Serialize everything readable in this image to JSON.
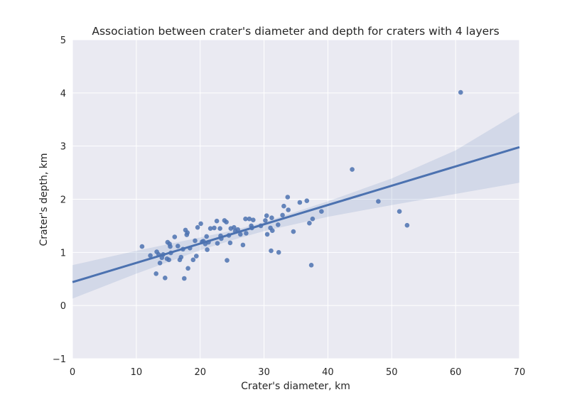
{
  "chart_data": {
    "type": "scatter",
    "title": "Association between crater's diameter and depth for craters with 4 layers",
    "xlabel": "Crater's diameter, km",
    "ylabel": "Crater's depth, km",
    "xlim": [
      0,
      70
    ],
    "ylim": [
      -1,
      5
    ],
    "xticks": [
      0,
      10,
      20,
      30,
      40,
      50,
      60,
      70
    ],
    "yticks": [
      -1,
      0,
      1,
      2,
      3,
      4,
      5
    ],
    "xtick_labels": [
      "0",
      "10",
      "20",
      "30",
      "40",
      "50",
      "60",
      "70"
    ],
    "ytick_labels": [
      "−1",
      "0",
      "1",
      "2",
      "3",
      "4",
      "5"
    ],
    "grid": true,
    "colors": {
      "background": "#eaeaf2",
      "grid": "#ffffff",
      "points": "#4c72b0",
      "line": "#4c72b0",
      "band": "#4c72b0"
    },
    "regression": {
      "x": [
        0,
        70
      ],
      "y": [
        0.44,
        2.98
      ]
    },
    "confidence_band": {
      "x": [
        0,
        10,
        20,
        25,
        30,
        40,
        50,
        60,
        70
      ],
      "lower": [
        0.13,
        0.6,
        1.04,
        1.23,
        1.4,
        1.67,
        1.89,
        2.1,
        2.31
      ],
      "upper": [
        0.76,
        1.03,
        1.28,
        1.41,
        1.57,
        1.96,
        2.39,
        2.92,
        3.64
      ]
    },
    "points": [
      {
        "x": 10.9,
        "y": 1.11
      },
      {
        "x": 12.2,
        "y": 0.94
      },
      {
        "x": 13.1,
        "y": 0.6
      },
      {
        "x": 13.2,
        "y": 1.01
      },
      {
        "x": 13.5,
        "y": 0.96
      },
      {
        "x": 13.7,
        "y": 0.8
      },
      {
        "x": 14.0,
        "y": 0.9
      },
      {
        "x": 14.2,
        "y": 0.96
      },
      {
        "x": 14.5,
        "y": 0.52
      },
      {
        "x": 14.8,
        "y": 0.88
      },
      {
        "x": 14.9,
        "y": 1.19
      },
      {
        "x": 15.1,
        "y": 0.86
      },
      {
        "x": 15.2,
        "y": 1.16
      },
      {
        "x": 15.3,
        "y": 1.11
      },
      {
        "x": 15.4,
        "y": 0.99
      },
      {
        "x": 16.0,
        "y": 1.29
      },
      {
        "x": 16.5,
        "y": 1.12
      },
      {
        "x": 16.8,
        "y": 0.86
      },
      {
        "x": 17.0,
        "y": 0.91
      },
      {
        "x": 17.3,
        "y": 1.06
      },
      {
        "x": 17.5,
        "y": 0.51
      },
      {
        "x": 17.7,
        "y": 1.42
      },
      {
        "x": 17.9,
        "y": 1.33
      },
      {
        "x": 18.0,
        "y": 1.37
      },
      {
        "x": 18.1,
        "y": 0.7
      },
      {
        "x": 18.4,
        "y": 1.08
      },
      {
        "x": 18.9,
        "y": 0.86
      },
      {
        "x": 19.2,
        "y": 1.22
      },
      {
        "x": 19.4,
        "y": 0.93
      },
      {
        "x": 19.6,
        "y": 1.47
      },
      {
        "x": 20.1,
        "y": 1.54
      },
      {
        "x": 20.3,
        "y": 1.2
      },
      {
        "x": 20.5,
        "y": 1.21
      },
      {
        "x": 20.8,
        "y": 1.16
      },
      {
        "x": 21.0,
        "y": 1.3
      },
      {
        "x": 21.1,
        "y": 1.05
      },
      {
        "x": 21.3,
        "y": 1.19
      },
      {
        "x": 21.6,
        "y": 1.45
      },
      {
        "x": 22.2,
        "y": 1.46
      },
      {
        "x": 22.6,
        "y": 1.59
      },
      {
        "x": 22.7,
        "y": 1.17
      },
      {
        "x": 23.1,
        "y": 1.45
      },
      {
        "x": 23.2,
        "y": 1.31
      },
      {
        "x": 23.3,
        "y": 1.26
      },
      {
        "x": 23.8,
        "y": 1.6
      },
      {
        "x": 24.1,
        "y": 1.57
      },
      {
        "x": 24.2,
        "y": 0.85
      },
      {
        "x": 24.5,
        "y": 1.32
      },
      {
        "x": 24.7,
        "y": 1.18
      },
      {
        "x": 24.8,
        "y": 1.45
      },
      {
        "x": 25.3,
        "y": 1.47
      },
      {
        "x": 25.5,
        "y": 1.4
      },
      {
        "x": 25.9,
        "y": 1.43
      },
      {
        "x": 26.3,
        "y": 1.34
      },
      {
        "x": 26.7,
        "y": 1.14
      },
      {
        "x": 27.1,
        "y": 1.63
      },
      {
        "x": 27.2,
        "y": 1.36
      },
      {
        "x": 27.7,
        "y": 1.63
      },
      {
        "x": 28.0,
        "y": 1.5
      },
      {
        "x": 28.1,
        "y": 1.46
      },
      {
        "x": 28.3,
        "y": 1.61
      },
      {
        "x": 29.5,
        "y": 1.5
      },
      {
        "x": 30.2,
        "y": 1.6
      },
      {
        "x": 30.4,
        "y": 1.69
      },
      {
        "x": 30.5,
        "y": 1.34
      },
      {
        "x": 31.0,
        "y": 1.46
      },
      {
        "x": 31.1,
        "y": 1.03
      },
      {
        "x": 31.2,
        "y": 1.65
      },
      {
        "x": 31.3,
        "y": 1.41
      },
      {
        "x": 32.2,
        "y": 1.52
      },
      {
        "x": 32.3,
        "y": 1.0
      },
      {
        "x": 32.9,
        "y": 1.7
      },
      {
        "x": 33.1,
        "y": 1.87
      },
      {
        "x": 33.7,
        "y": 2.04
      },
      {
        "x": 33.8,
        "y": 1.8
      },
      {
        "x": 34.6,
        "y": 1.39
      },
      {
        "x": 35.6,
        "y": 1.94
      },
      {
        "x": 36.7,
        "y": 1.97
      },
      {
        "x": 37.1,
        "y": 1.55
      },
      {
        "x": 37.4,
        "y": 0.76
      },
      {
        "x": 37.6,
        "y": 1.63
      },
      {
        "x": 39.0,
        "y": 1.77
      },
      {
        "x": 43.8,
        "y": 2.56
      },
      {
        "x": 47.9,
        "y": 1.96
      },
      {
        "x": 51.2,
        "y": 1.77
      },
      {
        "x": 52.4,
        "y": 1.51
      },
      {
        "x": 60.8,
        "y": 4.01
      }
    ]
  }
}
